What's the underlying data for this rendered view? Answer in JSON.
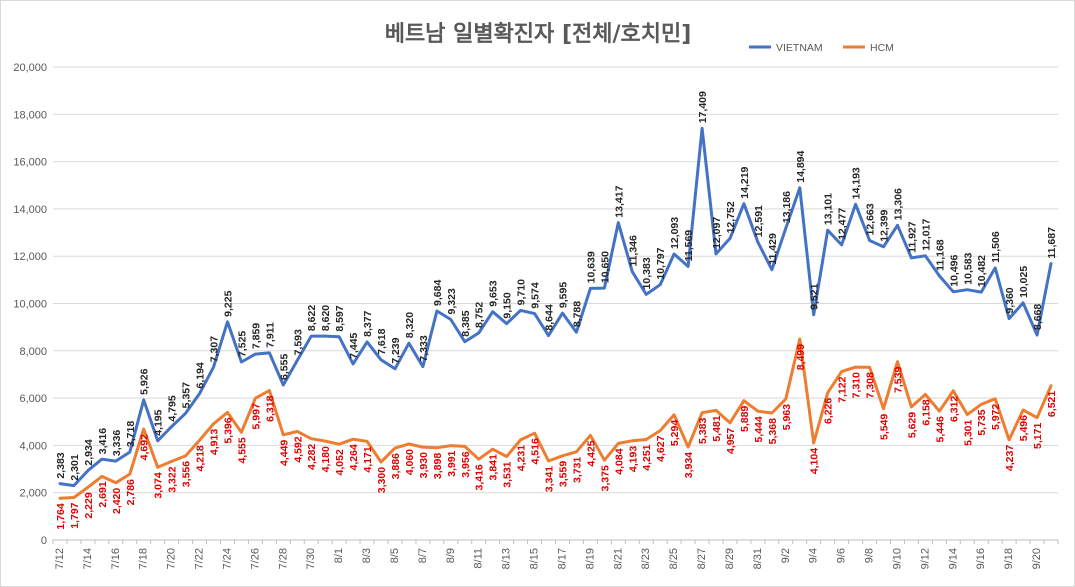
{
  "chart_data": {
    "type": "line",
    "title": "베트남  일별확진자 [전체/호치민]",
    "xlabel": "",
    "ylabel": "",
    "ylim": [
      0,
      20000
    ],
    "yticks": [
      "0",
      "2,000",
      "4,000",
      "6,000",
      "8,000",
      "10,000",
      "12,000",
      "14,000",
      "16,000",
      "18,000",
      "20,000"
    ],
    "xtick_labels": [
      "7/12",
      "7/14",
      "7/16",
      "7/18",
      "7/20",
      "7/22",
      "7/24",
      "7/26",
      "7/28",
      "7/30",
      "8/1",
      "8/3",
      "8/5",
      "8/7",
      "8/9",
      "8/11",
      "8/13",
      "8/15",
      "8/17",
      "8/19",
      "8/21",
      "8/23",
      "8/25",
      "8/27",
      "8/29",
      "8/31",
      "9/2",
      "9/4",
      "9/6",
      "9/8",
      "9/10",
      "9/12",
      "9/14",
      "9/16",
      "9/18",
      "9/20"
    ],
    "grid": "horizontal",
    "legend_position": "top-right",
    "series": [
      {
        "name": "VIETNAM",
        "color": "#4472c4",
        "values": [
          2383,
          2301,
          2934,
          3416,
          3336,
          3718,
          5926,
          4195,
          4795,
          5357,
          6194,
          7307,
          9225,
          7525,
          7859,
          7911,
          6555,
          7593,
          8622,
          8620,
          8597,
          7445,
          8377,
          7618,
          7239,
          8320,
          7333,
          9684,
          9323,
          8385,
          8752,
          9653,
          9150,
          9710,
          9574,
          8644,
          9595,
          8788,
          10639,
          10650,
          13417,
          11346,
          10383,
          10797,
          12093,
          11569,
          17409,
          12097,
          12752,
          14219,
          12591,
          11429,
          13186,
          14894,
          9521,
          13101,
          12477,
          14193,
          12663,
          12399,
          13306,
          11927,
          12017,
          11168,
          10496,
          10583,
          10482,
          11506,
          9360,
          10025,
          8668,
          11687
        ],
        "labels": [
          "2,383",
          "2,301",
          "2,934",
          "3,416",
          "3,336",
          "3,718",
          "5,926",
          "4,195",
          "4,795",
          "5,357",
          "6,194",
          "7,307",
          "9,225",
          "7,525",
          "7,859",
          "7,911",
          "6,555",
          "7,593",
          "8,622",
          "8,620",
          "8,597",
          "7,445",
          "8,377",
          "7,618",
          "7,239",
          "8,320",
          "7,333",
          "9,684",
          "9,323",
          "8,385",
          "8,752",
          "9,653",
          "9,150",
          "9,710",
          "9,574",
          "8,644",
          "9,595",
          "8,788",
          "10,639",
          "10,650",
          "13,417",
          "11,346",
          "10,383",
          "10,797",
          "12,093",
          "11,569",
          "17,409",
          "12,097",
          "12,752",
          "14,219",
          "12,591",
          "11,429",
          "13,186",
          "14,894",
          "9,521",
          "13,101",
          "12,477",
          "14,193",
          "12,663",
          "12,399",
          "13,306",
          "11,927",
          "12,017",
          "11,168",
          "10,496",
          "10,583",
          "10,482",
          "11,506",
          "9,360",
          "10,025",
          "8,668",
          "11,687"
        ]
      },
      {
        "name": "HCM",
        "color": "#ed7d31",
        "label_color": "#e00000",
        "values": [
          1764,
          1797,
          2229,
          2691,
          2420,
          2786,
          4692,
          3074,
          3322,
          3556,
          4218,
          4913,
          5396,
          4555,
          5997,
          6318,
          4449,
          4592,
          4282,
          4180,
          4052,
          4264,
          4171,
          3300,
          3886,
          4060,
          3930,
          3898,
          3991,
          3956,
          3416,
          3841,
          3531,
          4231,
          4516,
          3341,
          3559,
          3731,
          4425,
          3375,
          4084,
          4193,
          4251,
          4627,
          5294,
          3934,
          5383,
          5481,
          4957,
          5889,
          5444,
          5368,
          5963,
          8499,
          4104,
          6226,
          7122,
          7310,
          7308,
          5549,
          7539,
          5629,
          6158,
          5446,
          6312,
          5301,
          5735,
          5972,
          4237,
          5496,
          5171,
          6521
        ],
        "labels": [
          "1,764",
          "1,797",
          "2,229",
          "2,691",
          "2,420",
          "2,786",
          "4,692",
          "3,074",
          "3,322",
          "3,556",
          "4,218",
          "4,913",
          "5,396",
          "4,555",
          "5,997",
          "6,318",
          "4,449",
          "4,592",
          "4,282",
          "4,180",
          "4,052",
          "4,264",
          "4,171",
          "3,300",
          "3,886",
          "4,060",
          "3,930",
          "3,898",
          "3,991",
          "3,956",
          "3,416",
          "3,841",
          "3,531",
          "4,231",
          "4,516",
          "3,341",
          "3,559",
          "3,731",
          "4,425",
          "3,375",
          "4,084",
          "4,193",
          "4,251",
          "4,627",
          "5,294",
          "3,934",
          "5,383",
          "5,481",
          "4,957",
          "5,889",
          "5,444",
          "5,368",
          "5,963",
          "8,499",
          "4,104",
          "6,226",
          "7,122",
          "7,310",
          "7,308",
          "5,549",
          "7,539",
          "5,629",
          "6,158",
          "5,446",
          "6,312",
          "5,301",
          "5,735",
          "5,972",
          "4,237",
          "5,496",
          "5,171",
          "6,521"
        ]
      }
    ]
  }
}
